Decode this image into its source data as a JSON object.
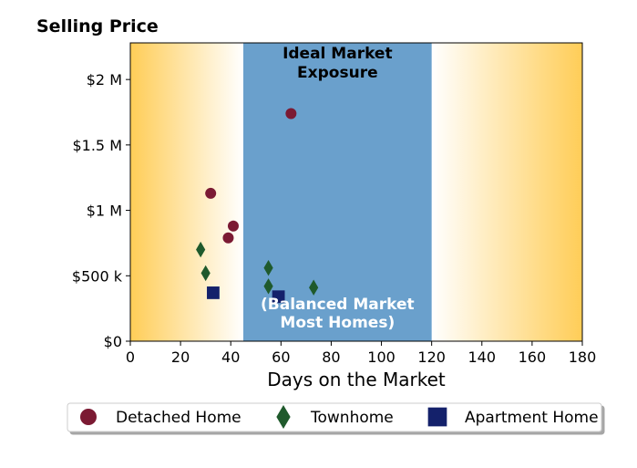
{
  "chart_data": {
    "type": "scatter",
    "title": "Selling Price",
    "xlabel": "Days on the Market",
    "ylabel": "",
    "xlim": [
      0,
      180
    ],
    "ylim": [
      0,
      2280000
    ],
    "x_ticks": [
      {
        "value": 0,
        "label": "0"
      },
      {
        "value": 20,
        "label": "20"
      },
      {
        "value": 40,
        "label": "40"
      },
      {
        "value": 60,
        "label": "60"
      },
      {
        "value": 80,
        "label": "80"
      },
      {
        "value": 100,
        "label": "100"
      },
      {
        "value": 120,
        "label": "120"
      },
      {
        "value": 140,
        "label": "140"
      },
      {
        "value": 160,
        "label": "160"
      },
      {
        "value": 180,
        "label": "180"
      }
    ],
    "y_ticks": [
      {
        "value": 0,
        "label": "$0"
      },
      {
        "value": 500000,
        "label": "$500 k"
      },
      {
        "value": 1000000,
        "label": "$1 M"
      },
      {
        "value": 1500000,
        "label": "$1.5 M"
      },
      {
        "value": 2000000,
        "label": "$2 M"
      }
    ],
    "grid": false,
    "legend_position": "bottom",
    "band": {
      "x_range": [
        45,
        120
      ],
      "color": "#6aa0cc",
      "top_label_line1": "Ideal Market",
      "top_label_line2": "Exposure",
      "bottom_label_line1": "(Balanced Market",
      "bottom_label_line2": "Most Homes)"
    },
    "edge_gradient_color": "#ffcd57",
    "series": [
      {
        "name": "Detached Home",
        "marker": "circle",
        "color": "#7b1a33",
        "points": [
          {
            "x": 64,
            "y": 1740000
          },
          {
            "x": 32,
            "y": 1130000
          },
          {
            "x": 41,
            "y": 880000
          },
          {
            "x": 39,
            "y": 790000
          }
        ]
      },
      {
        "name": "Townhome",
        "marker": "diamond",
        "color": "#1f5a2c",
        "points": [
          {
            "x": 28,
            "y": 700000
          },
          {
            "x": 30,
            "y": 520000
          },
          {
            "x": 55,
            "y": 560000
          },
          {
            "x": 55,
            "y": 420000
          },
          {
            "x": 73,
            "y": 410000
          }
        ]
      },
      {
        "name": "Apartment Home",
        "marker": "square",
        "color": "#14216b",
        "points": [
          {
            "x": 33,
            "y": 370000
          },
          {
            "x": 59,
            "y": 340000
          }
        ]
      }
    ]
  }
}
